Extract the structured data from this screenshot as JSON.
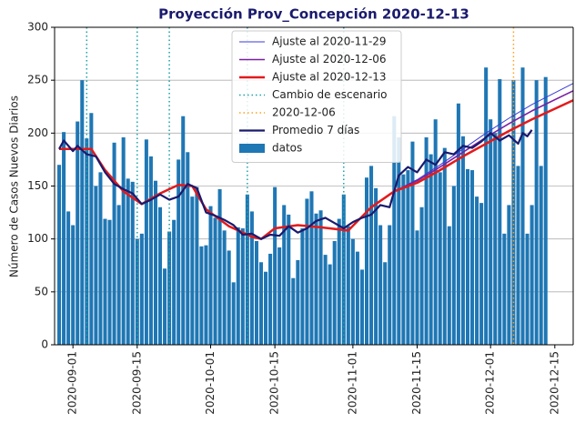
{
  "chart_data": {
    "type": "combo",
    "title": "Proyección Prov_Concepción 2020-12-13",
    "y_label": "Número de Casos Nuevos Diarios",
    "xlim": [
      "2020-08-28",
      "2020-12-19"
    ],
    "ylim": [
      0,
      300
    ],
    "yticks": [
      0,
      50,
      100,
      150,
      200,
      250,
      300
    ],
    "xticks": [
      "2020-09-01",
      "2020-09-15",
      "2020-10-01",
      "2020-10-15",
      "2020-11-01",
      "2020-11-15",
      "2020-12-01",
      "2020-12-15"
    ],
    "grid": true,
    "series": [
      {
        "name": "Ajuste al 2020-11-29",
        "type": "line",
        "color": "#3a3adb",
        "width": 1,
        "x": [
          "2020-10-31",
          "2020-11-05",
          "2020-11-10",
          "2020-11-15",
          "2020-11-20",
          "2020-11-25",
          "2020-11-30",
          "2020-12-05",
          "2020-12-10",
          "2020-12-19"
        ],
        "values": [
          108,
          130,
          145,
          156,
          170,
          185,
          200,
          214,
          227,
          247
        ]
      },
      {
        "name": "Ajuste al 2020-12-06",
        "type": "line",
        "color": "#7b1fa2",
        "width": 1.6,
        "x": [
          "2020-10-31",
          "2020-11-05",
          "2020-11-10",
          "2020-11-15",
          "2020-11-20",
          "2020-11-25",
          "2020-11-30",
          "2020-12-05",
          "2020-12-10",
          "2020-12-19"
        ],
        "values": [
          108,
          130,
          145,
          155,
          168,
          182,
          196,
          209,
          221,
          240
        ]
      },
      {
        "name": "Ajuste al 2020-12-13",
        "type": "line",
        "color": "#e31a1c",
        "width": 2.5,
        "x": [
          "2020-08-29",
          "2020-09-05",
          "2020-09-08",
          "2020-09-12",
          "2020-09-16",
          "2020-09-20",
          "2020-09-24",
          "2020-09-27",
          "2020-09-30",
          "2020-10-05",
          "2020-10-10",
          "2020-10-12",
          "2020-10-15",
          "2020-10-20",
          "2020-10-25",
          "2020-10-31",
          "2020-11-05",
          "2020-11-10",
          "2020-11-15",
          "2020-11-20",
          "2020-11-25",
          "2020-11-30",
          "2020-12-05",
          "2020-12-10",
          "2020-12-19"
        ],
        "values": [
          185,
          185,
          165,
          145,
          133,
          143,
          151,
          150,
          128,
          112,
          102,
          100,
          110,
          113,
          111,
          108,
          130,
          145,
          153,
          165,
          178,
          190,
          202,
          213,
          231
        ]
      },
      {
        "name": "Cambio de escenario",
        "type": "vline",
        "color": "#17a2a8",
        "x": [
          "2020-09-04",
          "2020-09-15",
          "2020-09-22",
          "2020-10-09",
          "2020-10-30"
        ]
      },
      {
        "name": "2020-12-06",
        "type": "vline",
        "color": "#ff9f1c",
        "x": [
          "2020-12-06"
        ]
      },
      {
        "name": "Promedio 7 días",
        "type": "line",
        "color": "#1a1a6e",
        "width": 2.2,
        "x": [
          "2020-08-29",
          "2020-08-30",
          "2020-09-01",
          "2020-09-02",
          "2020-09-04",
          "2020-09-06",
          "2020-09-08",
          "2020-09-10",
          "2020-09-12",
          "2020-09-14",
          "2020-09-16",
          "2020-09-18",
          "2020-09-20",
          "2020-09-22",
          "2020-09-24",
          "2020-09-26",
          "2020-09-28",
          "2020-09-30",
          "2020-10-02",
          "2020-10-04",
          "2020-10-06",
          "2020-10-08",
          "2020-10-10",
          "2020-10-12",
          "2020-10-14",
          "2020-10-16",
          "2020-10-18",
          "2020-10-20",
          "2020-10-22",
          "2020-10-24",
          "2020-10-26",
          "2020-10-28",
          "2020-10-30",
          "2020-11-01",
          "2020-11-03",
          "2020-11-05",
          "2020-11-07",
          "2020-11-09",
          "2020-11-11",
          "2020-11-13",
          "2020-11-15",
          "2020-11-17",
          "2020-11-19",
          "2020-11-21",
          "2020-11-23",
          "2020-11-25",
          "2020-11-27",
          "2020-11-29",
          "2020-12-01",
          "2020-12-03",
          "2020-12-05",
          "2020-12-07",
          "2020-12-08",
          "2020-12-09",
          "2020-12-10"
        ],
        "values": [
          185,
          193,
          183,
          188,
          180,
          178,
          163,
          152,
          147,
          143,
          133,
          137,
          142,
          137,
          140,
          152,
          148,
          125,
          122,
          118,
          113,
          104,
          105,
          100,
          104,
          103,
          112,
          106,
          110,
          117,
          120,
          115,
          110,
          116,
          120,
          123,
          132,
          130,
          160,
          168,
          163,
          175,
          170,
          182,
          180,
          188,
          186,
          192,
          200,
          193,
          198,
          190,
          200,
          197,
          203
        ]
      },
      {
        "name": "datos",
        "type": "bar",
        "color": "#1f77b4",
        "x": [
          "2020-08-29",
          "2020-08-30",
          "2020-08-31",
          "2020-09-01",
          "2020-09-02",
          "2020-09-03",
          "2020-09-04",
          "2020-09-05",
          "2020-09-06",
          "2020-09-07",
          "2020-09-08",
          "2020-09-09",
          "2020-09-10",
          "2020-09-11",
          "2020-09-12",
          "2020-09-13",
          "2020-09-14",
          "2020-09-15",
          "2020-09-16",
          "2020-09-17",
          "2020-09-18",
          "2020-09-19",
          "2020-09-20",
          "2020-09-21",
          "2020-09-22",
          "2020-09-23",
          "2020-09-24",
          "2020-09-25",
          "2020-09-26",
          "2020-09-27",
          "2020-09-28",
          "2020-09-29",
          "2020-09-30",
          "2020-10-01",
          "2020-10-02",
          "2020-10-03",
          "2020-10-04",
          "2020-10-05",
          "2020-10-06",
          "2020-10-07",
          "2020-10-08",
          "2020-10-09",
          "2020-10-10",
          "2020-10-11",
          "2020-10-12",
          "2020-10-13",
          "2020-10-14",
          "2020-10-15",
          "2020-10-16",
          "2020-10-17",
          "2020-10-18",
          "2020-10-19",
          "2020-10-20",
          "2020-10-21",
          "2020-10-22",
          "2020-10-23",
          "2020-10-24",
          "2020-10-25",
          "2020-10-26",
          "2020-10-27",
          "2020-10-28",
          "2020-10-29",
          "2020-10-30",
          "2020-10-31",
          "2020-11-01",
          "2020-11-02",
          "2020-11-03",
          "2020-11-04",
          "2020-11-05",
          "2020-11-06",
          "2020-11-07",
          "2020-11-08",
          "2020-11-09",
          "2020-11-10",
          "2020-11-11",
          "2020-11-12",
          "2020-11-13",
          "2020-11-14",
          "2020-11-15",
          "2020-11-16",
          "2020-11-17",
          "2020-11-18",
          "2020-11-19",
          "2020-11-20",
          "2020-11-21",
          "2020-11-22",
          "2020-11-23",
          "2020-11-24",
          "2020-11-25",
          "2020-11-26",
          "2020-11-27",
          "2020-11-28",
          "2020-11-29",
          "2020-11-30",
          "2020-12-01",
          "2020-12-02",
          "2020-12-03",
          "2020-12-04",
          "2020-12-05",
          "2020-12-06",
          "2020-12-07",
          "2020-12-08",
          "2020-12-09",
          "2020-12-10",
          "2020-12-11",
          "2020-12-12",
          "2020-12-13"
        ],
        "values": [
          170,
          201,
          126,
          113,
          211,
          250,
          195,
          219,
          150,
          163,
          119,
          118,
          191,
          132,
          196,
          157,
          154,
          100,
          105,
          194,
          178,
          155,
          130,
          72,
          107,
          118,
          175,
          216,
          182,
          140,
          149,
          93,
          94,
          131,
          120,
          147,
          108,
          89,
          59,
          111,
          110,
          142,
          126,
          98,
          78,
          69,
          86,
          149,
          92,
          132,
          123,
          63,
          80,
          110,
          138,
          145,
          124,
          127,
          85,
          76,
          98,
          119,
          142,
          112,
          100,
          88,
          71,
          158,
          169,
          148,
          113,
          78,
          113,
          216,
          196,
          161,
          165,
          192,
          108,
          130,
          196,
          180,
          213,
          163,
          186,
          112,
          150,
          228,
          197,
          166,
          165,
          140,
          134,
          262,
          213,
          200,
          251,
          105,
          132,
          250,
          169,
          262,
          105,
          132,
          250,
          169,
          253
        ]
      }
    ]
  }
}
